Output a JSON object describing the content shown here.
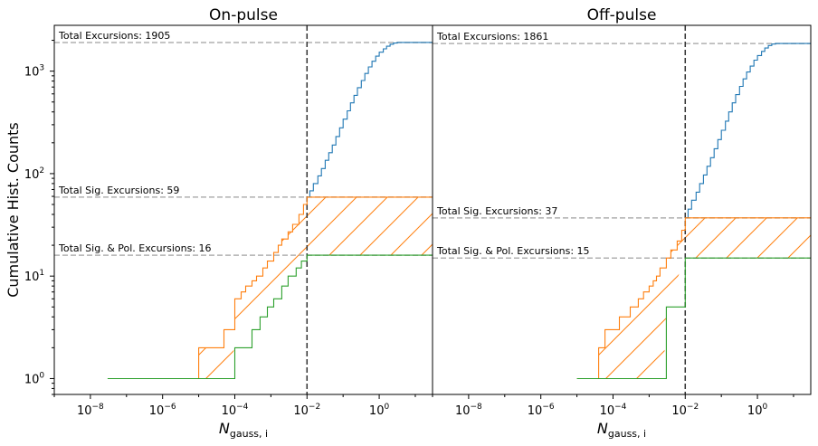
{
  "figure": {
    "ylabel": "Cumulative Hist. Counts"
  },
  "colors": {
    "total": "#1f77b4",
    "sig": "#ff7f0e",
    "sigpol": "#2ca02c",
    "ref_h": "#b0b0b0",
    "ref_v": "#333333"
  },
  "chart_data": [
    {
      "type": "line",
      "title": "On-pulse",
      "xlabel": "N_gauss, i",
      "ylabel": "Cumulative Hist. Counts",
      "xscale": "log",
      "yscale": "log",
      "xlim": [
        1e-09,
        30
      ],
      "ylim": [
        0.7,
        2800
      ],
      "x_ticks": [
        {
          "value": 1e-08,
          "base": "10",
          "exp": "−8"
        },
        {
          "value": 1e-06,
          "base": "10",
          "exp": "−6"
        },
        {
          "value": 0.0001,
          "base": "10",
          "exp": "−4"
        },
        {
          "value": 0.01,
          "base": "10",
          "exp": "−2"
        },
        {
          "value": 1,
          "base": "10",
          "exp": "0"
        }
      ],
      "y_ticks": [
        {
          "value": 1,
          "base": "10",
          "exp": "0"
        },
        {
          "value": 10,
          "base": "10",
          "exp": "1"
        },
        {
          "value": 100,
          "base": "10",
          "exp": "2"
        },
        {
          "value": 1000,
          "base": "10",
          "exp": "3"
        }
      ],
      "threshold_x": 0.01,
      "hlines": [
        {
          "value": 1905,
          "label": "Total Excursions: 1905"
        },
        {
          "value": 59,
          "label": "Total Sig. Excursions: 59"
        },
        {
          "value": 16,
          "label": "Total Sig. & Pol. Excursions: 16"
        }
      ],
      "series": [
        {
          "key": "total",
          "x": [
            0.01,
            0.012,
            0.015,
            0.02,
            0.025,
            0.032,
            0.04,
            0.05,
            0.063,
            0.08,
            0.1,
            0.13,
            0.16,
            0.2,
            0.25,
            0.32,
            0.4,
            0.5,
            0.63,
            0.8,
            1,
            1.3,
            1.6,
            2,
            2.5,
            3.2,
            30
          ],
          "y": [
            59,
            68,
            80,
            95,
            112,
            135,
            160,
            190,
            230,
            280,
            340,
            410,
            490,
            580,
            690,
            810,
            950,
            1100,
            1250,
            1400,
            1530,
            1650,
            1750,
            1830,
            1880,
            1905,
            1905
          ]
        },
        {
          "key": "sig",
          "x": [
            5e-06,
            1e-05,
            2e-05,
            5e-05,
            0.0001,
            0.00015,
            0.0002,
            0.0003,
            0.0004,
            0.0006,
            0.0008,
            0.0012,
            0.0016,
            0.002,
            0.003,
            0.004,
            0.006,
            0.008,
            0.01,
            30
          ],
          "y": [
            1,
            2,
            2,
            3,
            6,
            7,
            8,
            9,
            10,
            12,
            14,
            17,
            20,
            23,
            27,
            32,
            40,
            50,
            59,
            59
          ]
        },
        {
          "key": "sigpol",
          "x": [
            3e-08,
            1e-07,
            1e-05,
            2e-05,
            5e-05,
            0.0001,
            0.0003,
            0.0005,
            0.0008,
            0.0012,
            0.002,
            0.003,
            0.005,
            0.007,
            0.01,
            30
          ],
          "y": [
            1,
            1,
            1,
            1,
            1,
            2,
            3,
            4,
            5,
            6,
            8,
            10,
            12,
            14,
            16,
            16
          ]
        }
      ],
      "hatch_fill": {
        "x_start": 5e-06
      }
    },
    {
      "type": "line",
      "title": "Off-pulse",
      "xlabel": "N_gauss, i",
      "ylabel": "",
      "xscale": "log",
      "yscale": "log",
      "xlim": [
        1e-09,
        30
      ],
      "ylim": [
        0.7,
        2800
      ],
      "x_ticks": [
        {
          "value": 1e-08,
          "base": "10",
          "exp": "−8"
        },
        {
          "value": 1e-06,
          "base": "10",
          "exp": "−6"
        },
        {
          "value": 0.0001,
          "base": "10",
          "exp": "−4"
        },
        {
          "value": 0.01,
          "base": "10",
          "exp": "−2"
        },
        {
          "value": 1,
          "base": "10",
          "exp": "0"
        }
      ],
      "y_ticks": [],
      "threshold_x": 0.01,
      "hlines": [
        {
          "value": 1861,
          "label": "Total Excursions: 1861"
        },
        {
          "value": 37,
          "label": "Total Sig. Excursions: 37"
        },
        {
          "value": 15,
          "label": "Total Sig. & Pol. Excursions: 15"
        }
      ],
      "series": [
        {
          "key": "total",
          "x": [
            0.01,
            0.012,
            0.015,
            0.02,
            0.025,
            0.032,
            0.04,
            0.05,
            0.063,
            0.08,
            0.1,
            0.13,
            0.16,
            0.2,
            0.25,
            0.32,
            0.4,
            0.5,
            0.63,
            0.8,
            1,
            1.3,
            1.6,
            2,
            2.5,
            3.2,
            30
          ],
          "y": [
            37,
            45,
            55,
            66,
            80,
            97,
            118,
            143,
            175,
            215,
            265,
            325,
            400,
            490,
            590,
            710,
            840,
            980,
            1120,
            1280,
            1420,
            1560,
            1680,
            1780,
            1840,
            1861,
            1861
          ]
        },
        {
          "key": "sig",
          "x": [
            1e-05,
            2e-05,
            4e-05,
            6e-05,
            0.0001,
            0.00015,
            0.0002,
            0.0003,
            0.0005,
            0.0007,
            0.001,
            0.0013,
            0.0016,
            0.002,
            0.003,
            0.004,
            0.006,
            0.008,
            0.01,
            30
          ],
          "y": [
            1,
            1,
            2,
            3,
            3,
            4,
            4,
            5,
            6,
            7,
            8,
            9,
            10,
            12,
            15,
            18,
            22,
            28,
            37,
            37
          ]
        },
        {
          "key": "sigpol",
          "x": [
            1e-05,
            2e-05,
            0.0025,
            0.003,
            0.01,
            30
          ],
          "y": [
            1,
            1,
            1,
            5,
            15,
            15
          ]
        }
      ],
      "hatch_fill": {
        "x_start": 1e-05
      }
    }
  ]
}
